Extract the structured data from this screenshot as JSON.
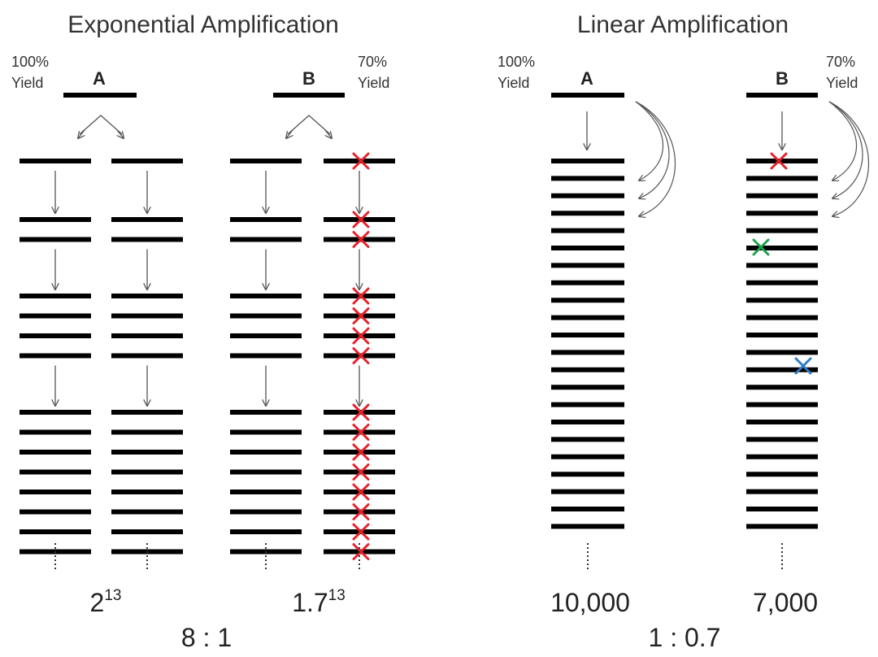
{
  "exponential": {
    "title": "Exponential Amplification",
    "left_yield": [
      "100%",
      "Yield"
    ],
    "right_yield": [
      "70%",
      "Yield"
    ],
    "label_a": "A",
    "label_b": "B",
    "count_a": {
      "base": "2",
      "exp": "13"
    },
    "count_b": {
      "base": "1.7",
      "exp": "13"
    },
    "ratio": "8 : 1",
    "generations": [
      1,
      2,
      4,
      8
    ]
  },
  "linear": {
    "title": "Linear Amplification",
    "left_yield": [
      "100%",
      "Yield"
    ],
    "right_yield": [
      "70%",
      "Yield"
    ],
    "label_a": "A",
    "label_b": "B",
    "count_a": "10,000",
    "count_b": "7,000",
    "ratio": "1 : 0.7",
    "strand_count": 22
  },
  "colors": {
    "strand": "#000000",
    "arrow": "#555555",
    "cross_red": "#e8202a",
    "cross_green": "#1ca24b",
    "cross_blue": "#2e7ec4",
    "text": "#222222"
  }
}
